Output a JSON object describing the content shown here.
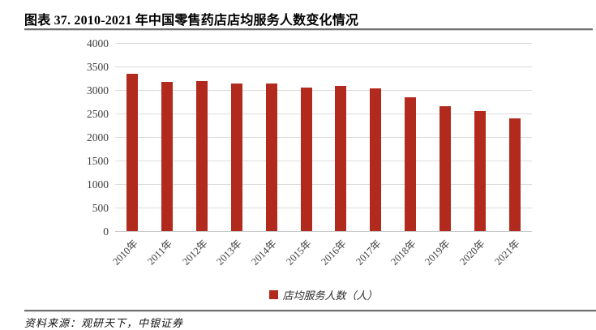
{
  "header": {
    "title": "图表 37. 2010-2021 年中国零售药店店均服务人数变化情况"
  },
  "chart_data": {
    "type": "bar",
    "title": "图表 37. 2010-2021 年中国零售药店店均服务人数变化情况",
    "categories": [
      "2010年",
      "2011年",
      "2012年",
      "2013年",
      "2014年",
      "2015年",
      "2016年",
      "2017年",
      "2018年",
      "2019年",
      "2020年",
      "2021年"
    ],
    "values": [
      3350,
      3170,
      3190,
      3130,
      3130,
      3060,
      3090,
      3040,
      2850,
      2660,
      2560,
      2390
    ],
    "series_name": "店均服务人数（人）",
    "xlabel": "",
    "ylabel": "",
    "ylim": [
      0,
      4000
    ],
    "yticks": [
      0,
      500,
      1000,
      1500,
      2000,
      2500,
      3000,
      3500,
      4000
    ],
    "grid": true,
    "legend_position": "bottom",
    "bar_color": "#b22a1e"
  },
  "footer": {
    "source": "资料来源：观研天下，中银证券"
  },
  "colors": {
    "bar": "#b22a1e",
    "gridline": "#dcdcdc",
    "rule": "#6f6f6f",
    "tick_text": "#3d3d3d"
  }
}
